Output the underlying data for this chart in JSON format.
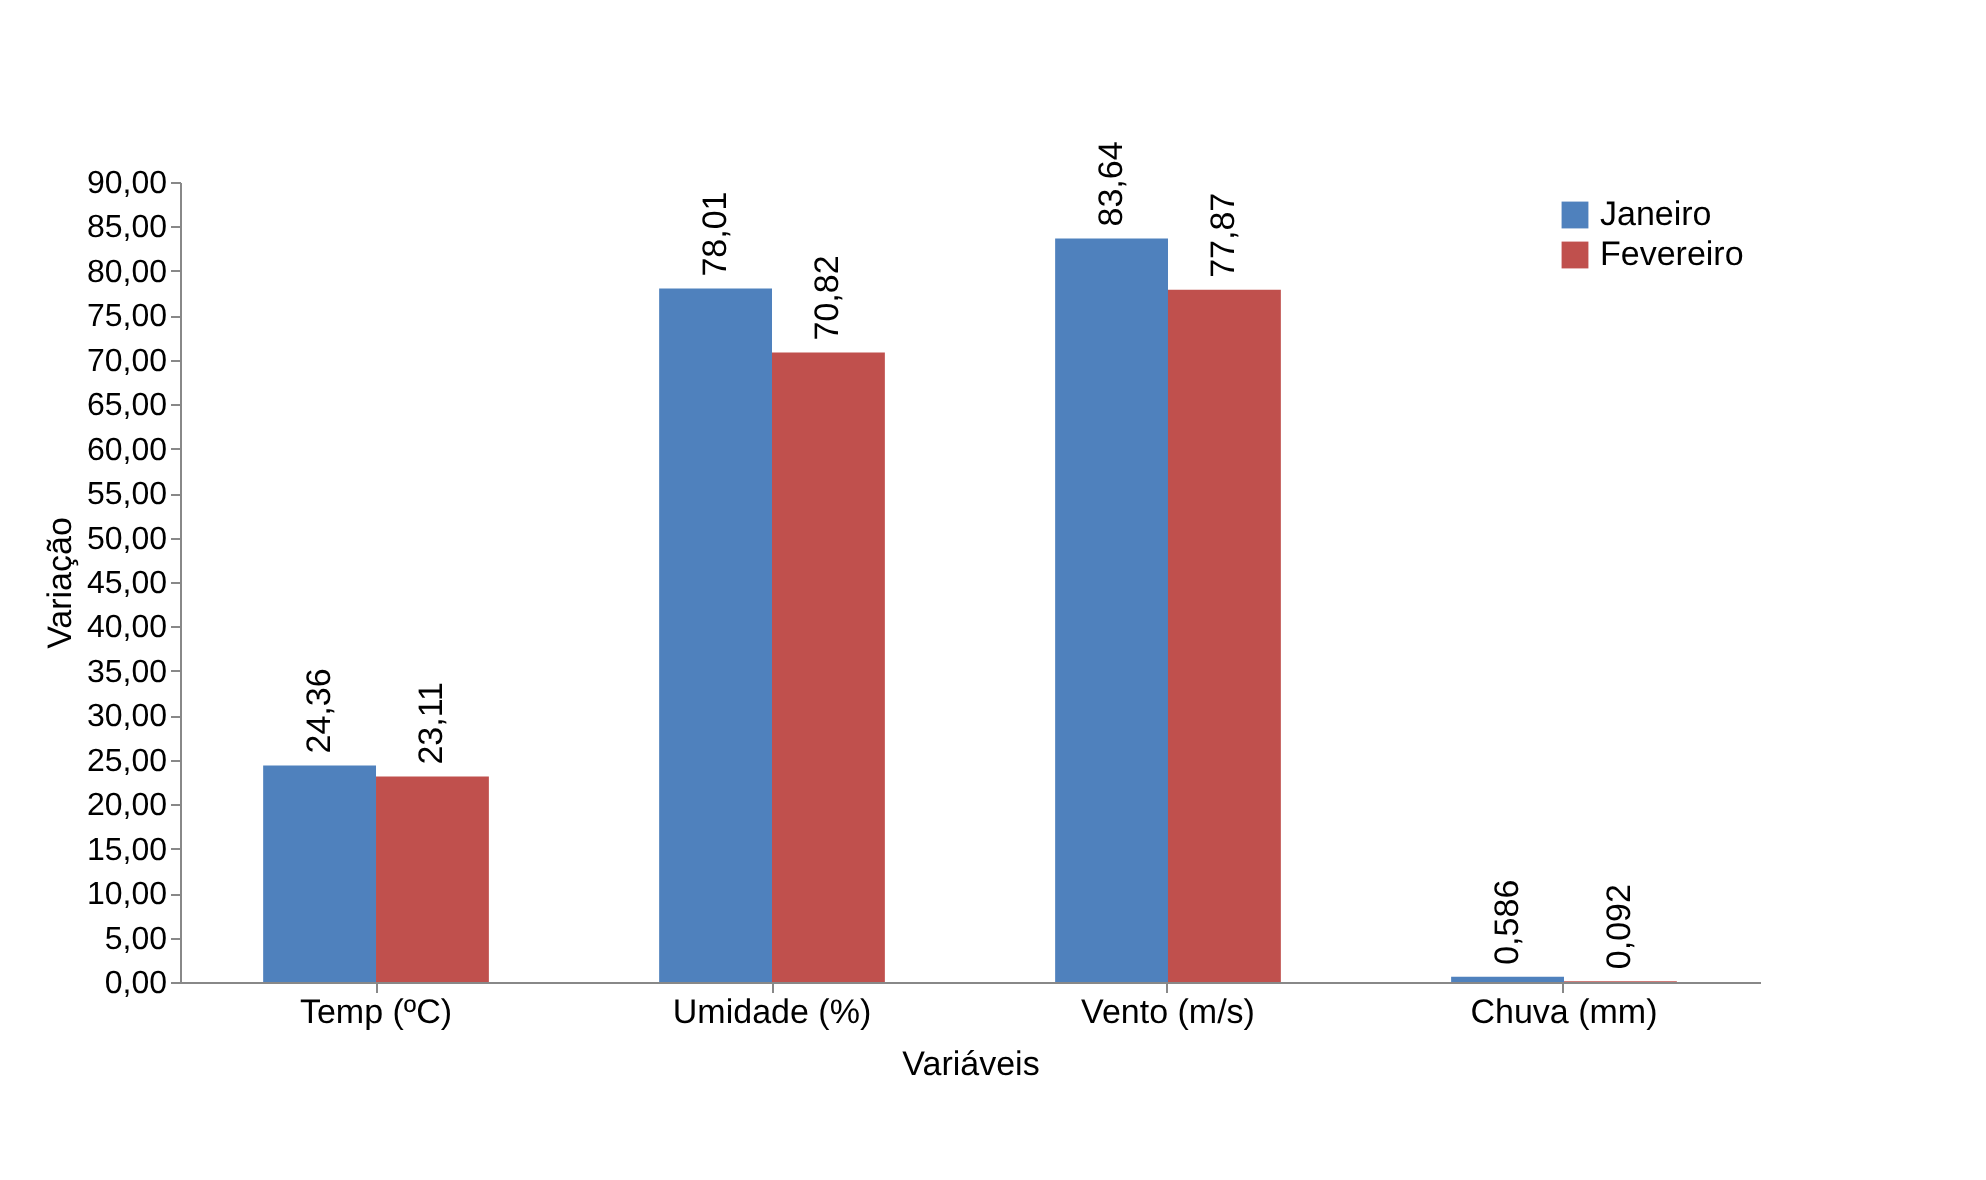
{
  "chart_data": {
    "type": "bar",
    "xlabel": "Variáveis",
    "ylabel": "Variação",
    "categories": [
      "Temp (ºC)",
      "Umidade (%)",
      "Vento (m/s)",
      "Chuva (mm)"
    ],
    "series": [
      {
        "name": "Janeiro",
        "color": "#4f81bd",
        "values": [
          24.36,
          78.01,
          83.64,
          0.586
        ],
        "value_labels": [
          "24,36",
          "78,01",
          "83,64",
          "0,586"
        ]
      },
      {
        "name": "Fevereiro",
        "color": "#c0504d",
        "values": [
          23.11,
          70.82,
          77.87,
          0.092
        ],
        "value_labels": [
          "23,11",
          "70,82",
          "77,87",
          "0,092"
        ]
      }
    ],
    "ylim": [
      0,
      90
    ],
    "yticks": [
      {
        "value": 0,
        "label": "0,00"
      },
      {
        "value": 5,
        "label": "5,00"
      },
      {
        "value": 10,
        "label": "10,00"
      },
      {
        "value": 15,
        "label": "15,00"
      },
      {
        "value": 20,
        "label": "20,00"
      },
      {
        "value": 25,
        "label": "25,00"
      },
      {
        "value": 30,
        "label": "30,00"
      },
      {
        "value": 35,
        "label": "35,00"
      },
      {
        "value": 40,
        "label": "40,00"
      },
      {
        "value": 45,
        "label": "45,00"
      },
      {
        "value": 50,
        "label": "50,00"
      },
      {
        "value": 55,
        "label": "55,00"
      },
      {
        "value": 60,
        "label": "60,00"
      },
      {
        "value": 65,
        "label": "65,00"
      },
      {
        "value": 70,
        "label": "70,00"
      },
      {
        "value": 75,
        "label": "75,00"
      },
      {
        "value": 80,
        "label": "80,00"
      },
      {
        "value": 85,
        "label": "85,00"
      },
      {
        "value": 90,
        "label": "90,00"
      }
    ],
    "grid": false,
    "legend": "top right"
  }
}
